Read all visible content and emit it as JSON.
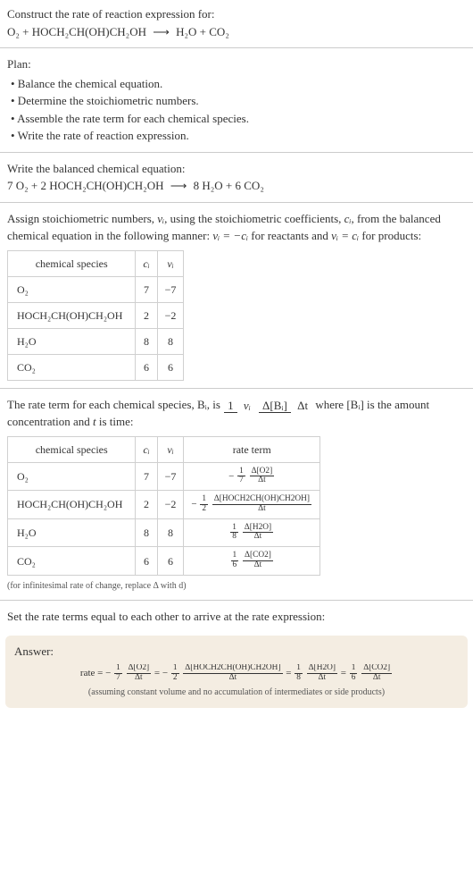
{
  "intro": {
    "prompt": "Construct the rate of reaction expression for:",
    "reactants": "O₂ + HOCH₂CH(OH)CH₂OH",
    "products": "H₂O + CO₂",
    "arrow": "⟶"
  },
  "plan": {
    "title": "Plan:",
    "bullets": [
      "• Balance the chemical equation.",
      "• Determine the stoichiometric numbers.",
      "• Assemble the rate term for each chemical species.",
      "• Write the rate of reaction expression."
    ]
  },
  "balanced": {
    "title": "Write the balanced chemical equation:",
    "lhs": "7 O₂ + 2 HOCH₂CH(OH)CH₂OH",
    "rhs": "8 H₂O + 6 CO₂",
    "arrow": "⟶"
  },
  "stoich": {
    "text1": "Assign stoichiometric numbers, ",
    "nu": "νᵢ",
    "text2": ", using the stoichiometric coefficients, ",
    "ci": "cᵢ",
    "text3": ", from the balanced chemical equation in the following manner: ",
    "eq1": "νᵢ = −cᵢ",
    "text4": " for reactants and ",
    "eq2": "νᵢ = cᵢ",
    "text5": " for products:"
  },
  "table1": {
    "headers": [
      "chemical species",
      "cᵢ",
      "νᵢ"
    ],
    "rows": [
      {
        "species": "O₂",
        "c": "7",
        "nu": "−7"
      },
      {
        "species": "HOCH₂CH(OH)CH₂OH",
        "c": "2",
        "nu": "−2"
      },
      {
        "species": "H₂O",
        "c": "8",
        "nu": "8"
      },
      {
        "species": "CO₂",
        "c": "6",
        "nu": "6"
      }
    ]
  },
  "ratetext": {
    "p1": "The rate term for each chemical species, Bᵢ, is ",
    "frac1_num": "1",
    "frac1_den": "νᵢ",
    "frac2_num": "Δ[Bᵢ]",
    "frac2_den": "Δt",
    "p2": " where [Bᵢ] is the amount concentration and ",
    "tvar": "t",
    "p3": " is time:"
  },
  "table2": {
    "headers": [
      "chemical species",
      "cᵢ",
      "νᵢ",
      "rate term"
    ],
    "rows": [
      {
        "species": "O₂",
        "c": "7",
        "nu": "−7",
        "sign": "−",
        "coef": "7",
        "dconc": "Δ[O2]"
      },
      {
        "species": "HOCH₂CH(OH)CH₂OH",
        "c": "2",
        "nu": "−2",
        "sign": "−",
        "coef": "2",
        "dconc": "Δ[HOCH2CH(OH)CH2OH]"
      },
      {
        "species": "H₂O",
        "c": "8",
        "nu": "8",
        "sign": "",
        "coef": "8",
        "dconc": "Δ[H2O]"
      },
      {
        "species": "CO₂",
        "c": "6",
        "nu": "6",
        "sign": "",
        "coef": "6",
        "dconc": "Δ[CO2]"
      }
    ],
    "dt": "Δt",
    "coef_num": "1"
  },
  "footnote": "(for infinitesimal rate of change, replace Δ with d)",
  "final_intro": "Set the rate terms equal to each other to arrive at the rate expression:",
  "answer": {
    "title": "Answer:",
    "rate_label": "rate = ",
    "terms": [
      {
        "sign": "−",
        "den": "7",
        "dconc": "Δ[O2]"
      },
      {
        "sign": "−",
        "den": "2",
        "dconc": "Δ[HOCH2CH(OH)CH2OH]"
      },
      {
        "sign": "",
        "den": "8",
        "dconc": "Δ[H2O]"
      },
      {
        "sign": "",
        "den": "6",
        "dconc": "Δ[CO2]"
      }
    ],
    "dt": "Δt",
    "num1": "1",
    "eq": " = ",
    "assume": "(assuming constant volume and no accumulation of intermediates or side products)"
  },
  "colors": {
    "answer_bg": "#f4ede2",
    "sep": "#cccccc",
    "table_border": "#d0d0d0"
  }
}
